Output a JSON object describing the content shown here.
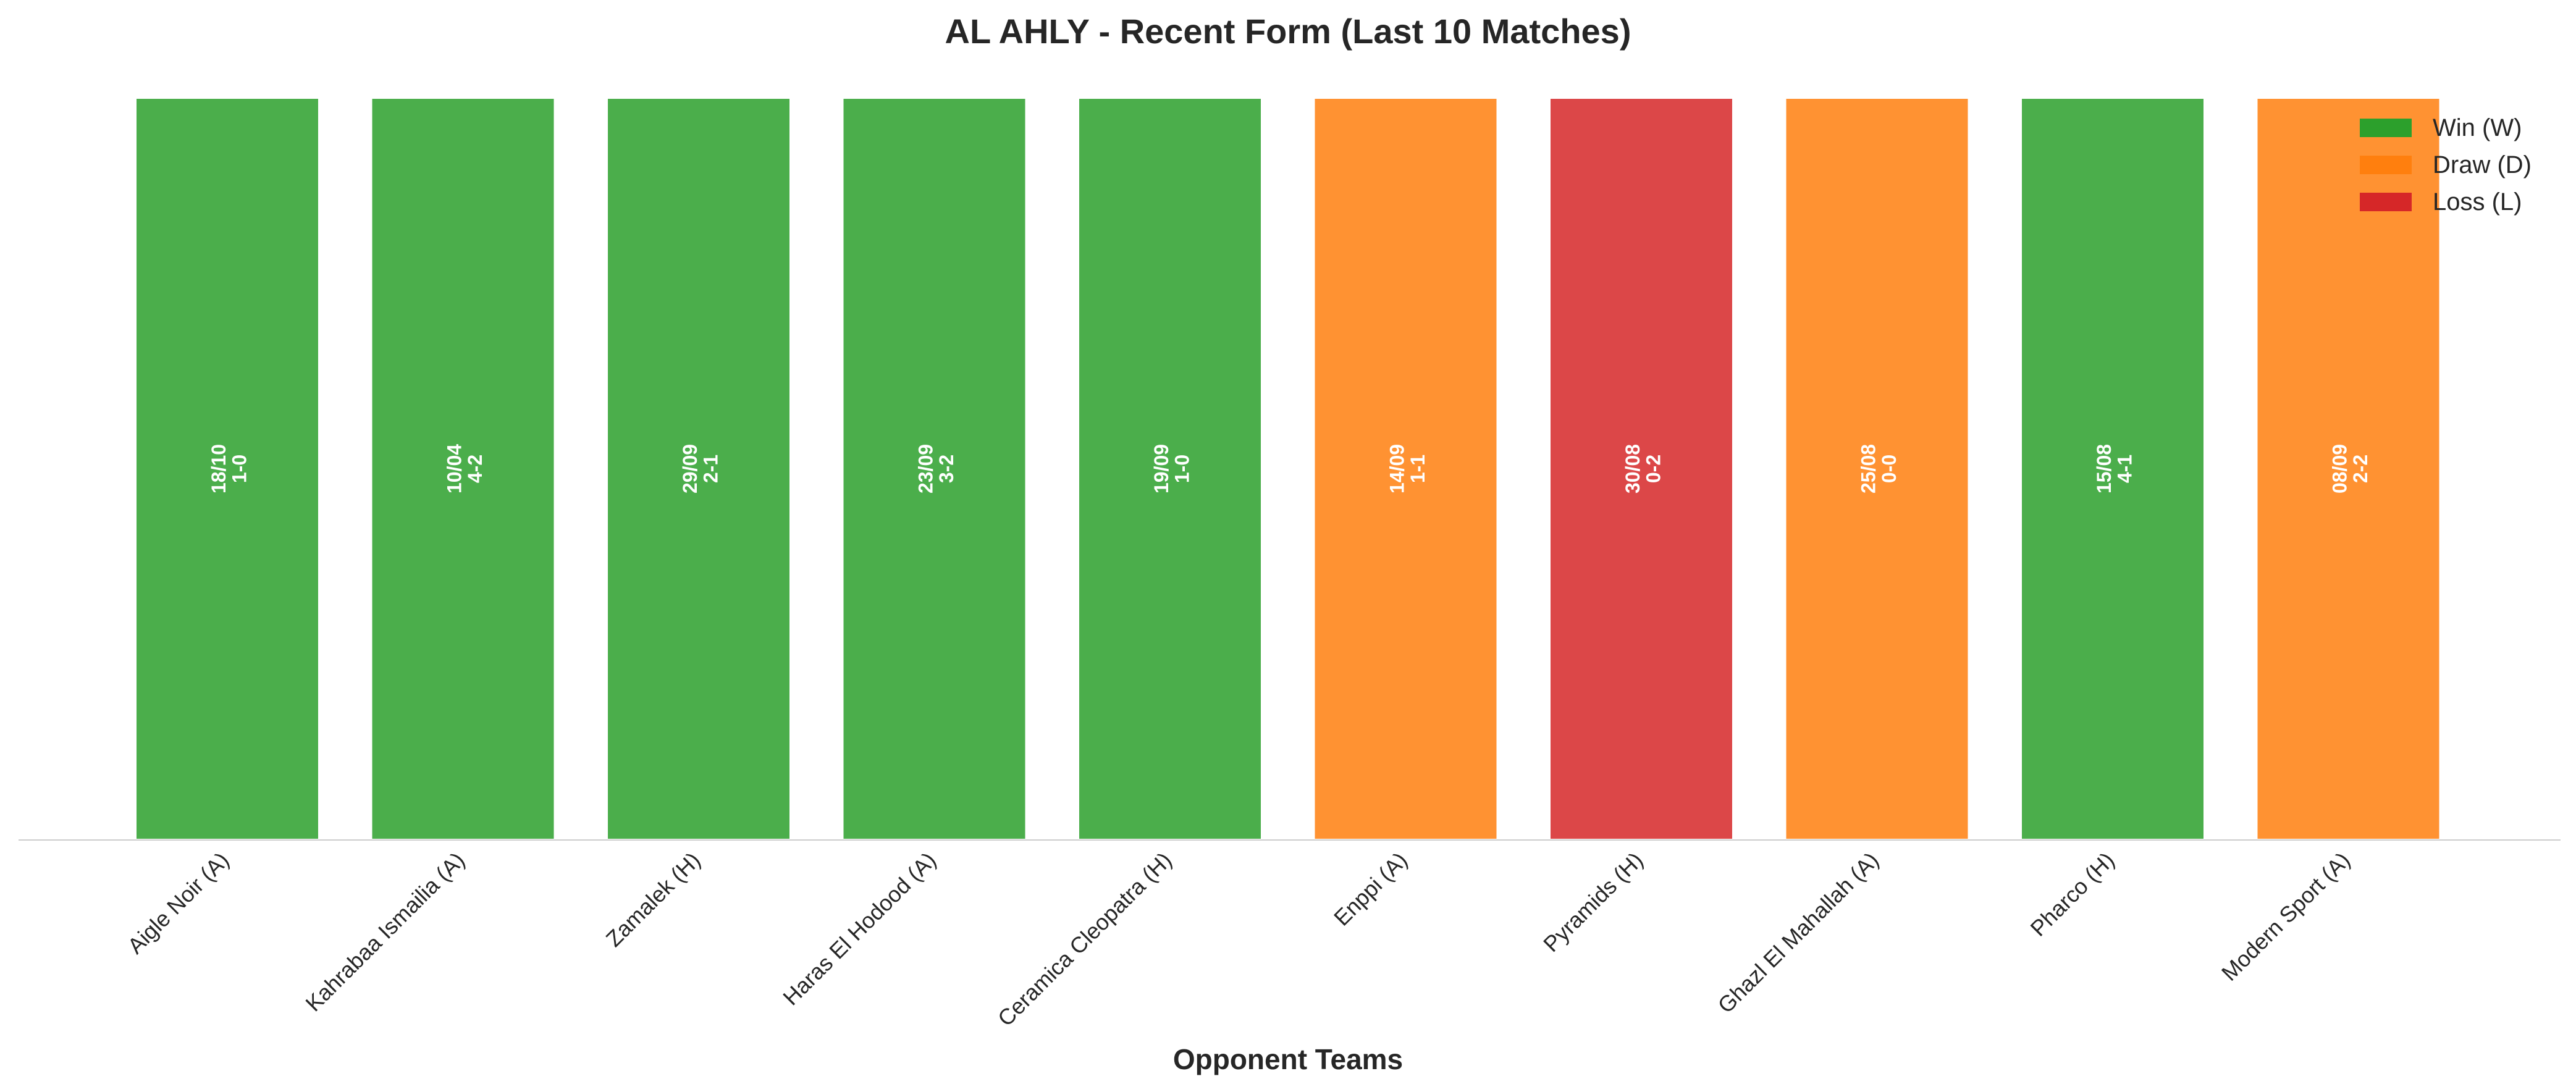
{
  "chart_data": {
    "type": "bar",
    "title": "AL AHLY - Recent Form (Last 10 Matches)",
    "xlabel": "Opponent Teams",
    "ylabel": "",
    "ylim": [
      0,
      1
    ],
    "grid": false,
    "legend_position": "top-right",
    "categories": [
      "Aigle Noir (A)",
      "Kahrabaa Ismailia (A)",
      "Zamalek (H)",
      "Haras El Hodood (A)",
      "Ceramica Cleopatra (H)",
      "Enppi (A)",
      "Pyramids (H)",
      "Ghazl El Mahallah (A)",
      "Pharco (H)",
      "Modern Sport (A)"
    ],
    "values": [
      1,
      1,
      1,
      1,
      1,
      1,
      1,
      1,
      1,
      1
    ],
    "results": [
      "W",
      "W",
      "W",
      "W",
      "W",
      "D",
      "L",
      "D",
      "W",
      "D"
    ],
    "dates": [
      "18/10",
      "10/04",
      "29/09",
      "23/09",
      "19/09",
      "14/09",
      "30/08",
      "25/08",
      "15/08",
      "08/09"
    ],
    "scores": [
      "1-0",
      "4-2",
      "2-1",
      "3-2",
      "1-0",
      "1-1",
      "0-2",
      "0-0",
      "4-1",
      "2-2"
    ],
    "legend": [
      {
        "key": "W",
        "label": "Win (W)",
        "color": "#2ca02c"
      },
      {
        "key": "D",
        "label": "Draw (D)",
        "color": "#ff7f0e"
      },
      {
        "key": "L",
        "label": "Loss (L)",
        "color": "#d62728"
      }
    ]
  }
}
